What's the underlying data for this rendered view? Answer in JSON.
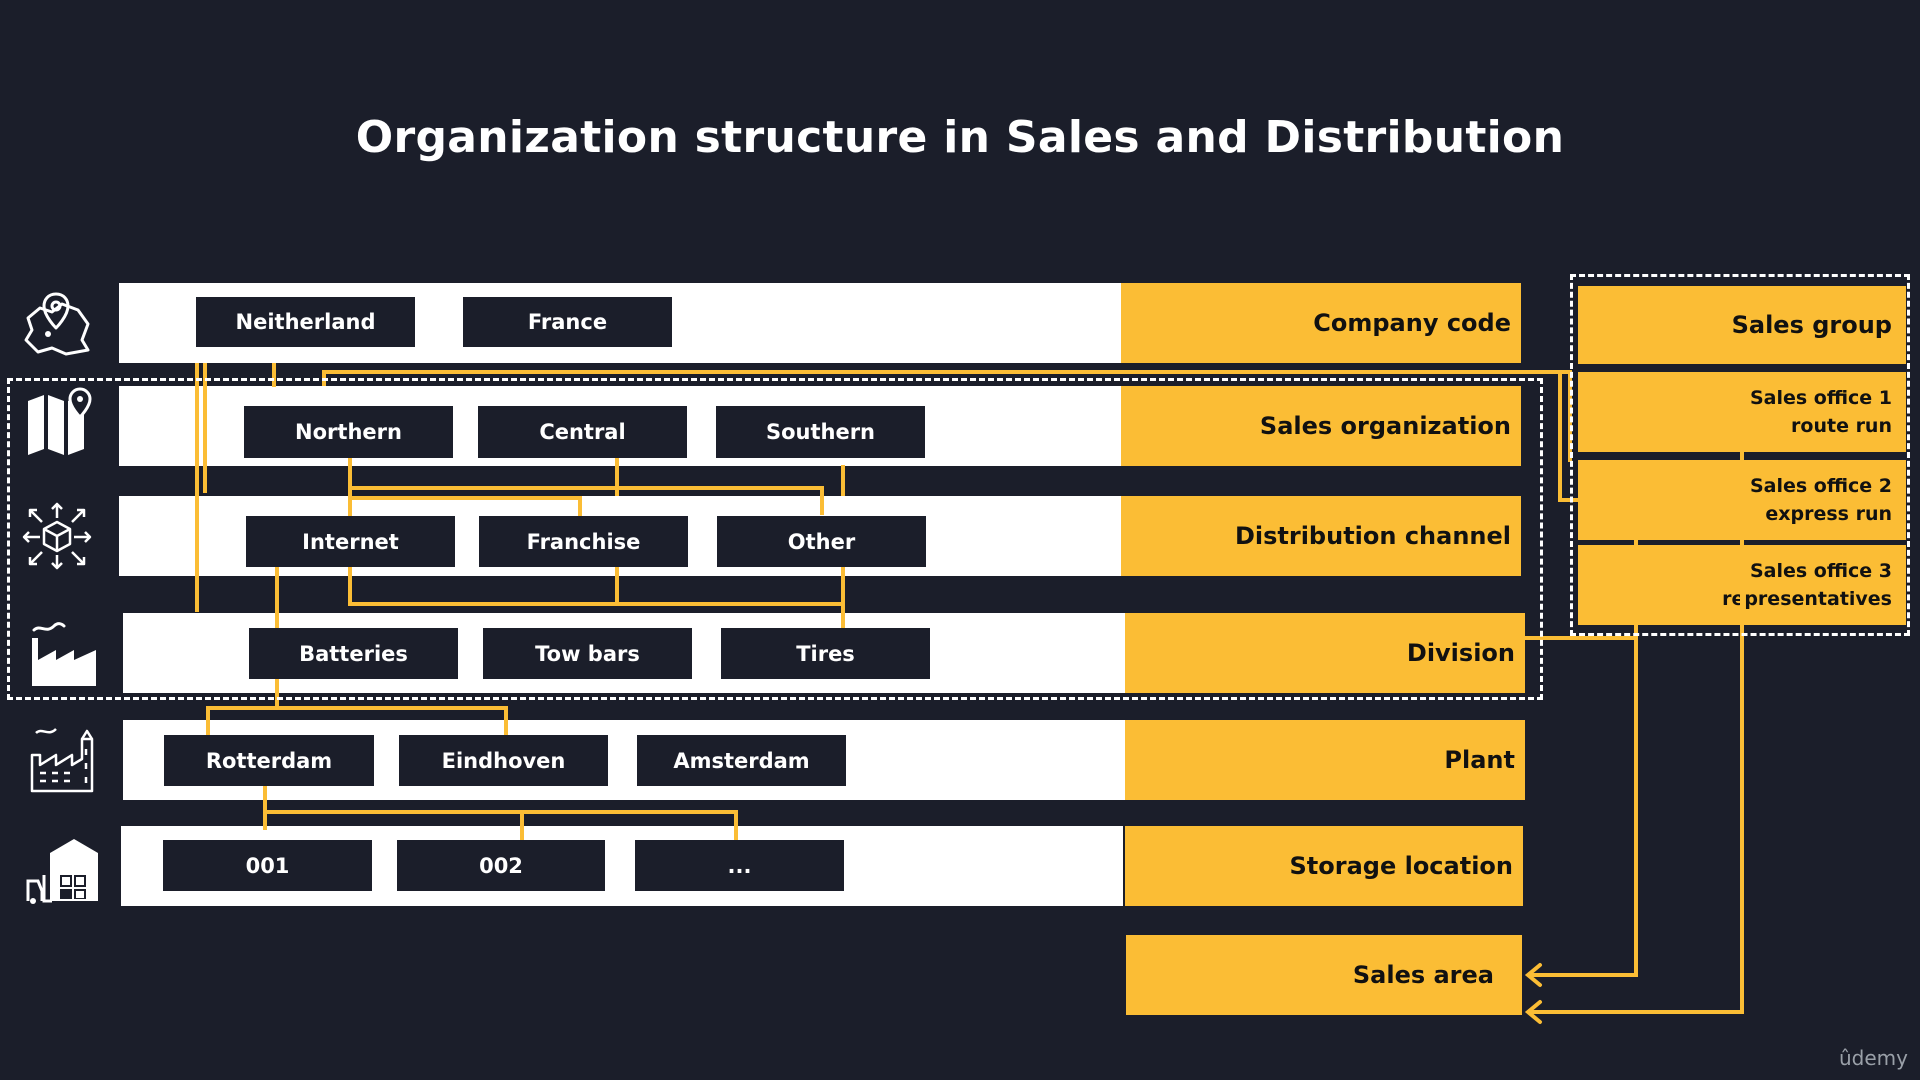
{
  "title": "Organization structure in Sales and Distribution",
  "levels": {
    "company_code": "Company code",
    "sales_organization": "Sales organization",
    "distribution_channel": "Distribution channel",
    "division": "Division",
    "plant": "Plant",
    "storage_location": "Storage location",
    "sales_area": "Sales area"
  },
  "company_codes": [
    "Neitherland",
    "France"
  ],
  "sales_organizations": [
    "Northern",
    "Central",
    "Southern"
  ],
  "distribution_channels": [
    "Internet",
    "Franchise",
    "Other"
  ],
  "divisions": [
    "Batteries",
    "Tow bars",
    "Tires"
  ],
  "plants": [
    "Rotterdam",
    "Eindhoven",
    "Amsterdam"
  ],
  "storage_locations": [
    "001",
    "002",
    "..."
  ],
  "sales_group": {
    "header": "Sales group",
    "offices": [
      {
        "line1": "Sales office 1",
        "line2": "route run"
      },
      {
        "line1": "Sales office 2",
        "line2": "express run"
      },
      {
        "line1": "Sales office 3",
        "line2": "representatives"
      }
    ]
  },
  "icons": [
    "map-pin-icon",
    "folded-map-icon",
    "distribution-box-icon",
    "factory-icon",
    "plant-building-icon",
    "warehouse-icon"
  ],
  "colors": {
    "background": "#1b1e2a",
    "accent": "#fbbd35",
    "row": "#ffffff"
  },
  "watermark": "ûdemy"
}
